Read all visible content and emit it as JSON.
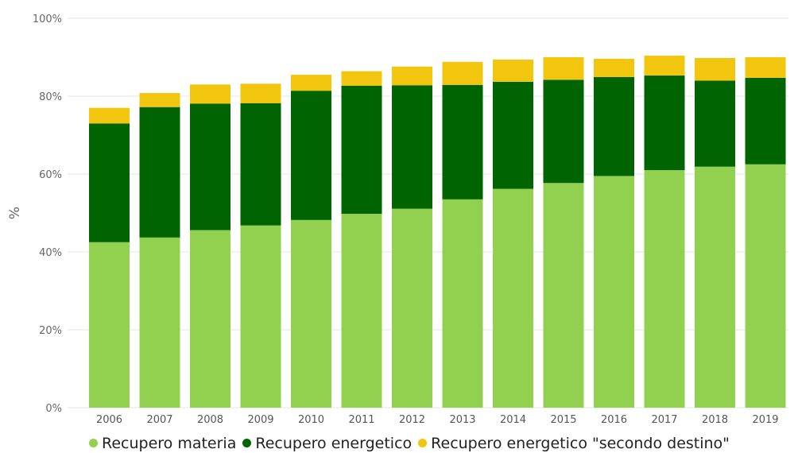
{
  "chart_data": {
    "type": "bar",
    "stacked": true,
    "categories": [
      "2006",
      "2007",
      "2008",
      "2009",
      "2010",
      "2011",
      "2012",
      "2013",
      "2014",
      "2015",
      "2016",
      "2017",
      "2018",
      "2019"
    ],
    "series": [
      {
        "name": "Recupero materia",
        "color": "#92d050",
        "values": [
          42.5,
          43.7,
          45.6,
          46.8,
          48.2,
          49.8,
          51.1,
          53.5,
          56.2,
          57.7,
          59.5,
          61.0,
          61.9,
          62.5
        ]
      },
      {
        "name": "Recupero energetico",
        "color": "#006400",
        "values": [
          30.5,
          33.5,
          32.5,
          31.4,
          33.2,
          32.9,
          31.7,
          29.4,
          27.5,
          26.5,
          25.4,
          24.3,
          22.1,
          22.2
        ]
      },
      {
        "name": "Recupero energetico \"secondo destino\"",
        "color": "#f2c50f",
        "values": [
          4.0,
          3.6,
          4.9,
          5.0,
          4.1,
          3.7,
          4.8,
          5.9,
          5.7,
          5.8,
          4.7,
          5.1,
          5.8,
          5.3
        ]
      }
    ],
    "ylabel": "%",
    "ylim": [
      0,
      100
    ],
    "yticks": [
      "0%",
      "20%",
      "40%",
      "60%",
      "80%",
      "100%"
    ],
    "grid": true,
    "legend_position": "bottom"
  }
}
